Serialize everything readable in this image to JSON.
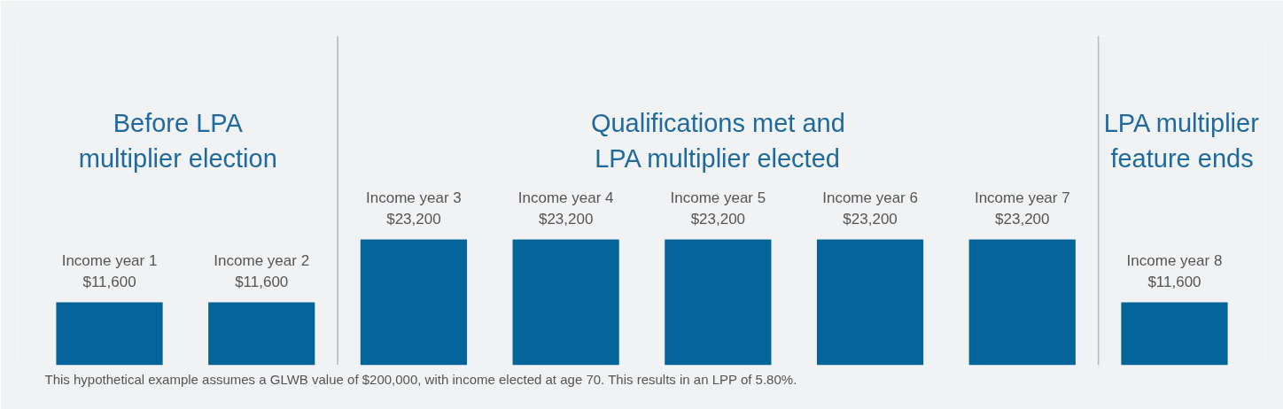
{
  "chart_data": {
    "type": "bar",
    "categories": [
      "Income year 1",
      "Income year 2",
      "Income year 3",
      "Income year 4",
      "Income year 5",
      "Income year 6",
      "Income year 7",
      "Income year 8"
    ],
    "series": [
      {
        "color": "#03649a",
        "values": [
          11600,
          11600,
          23200,
          23200,
          23200,
          23200,
          23200,
          11600
        ],
        "value_labels": [
          "$11,600",
          "$11,600",
          "$23,200",
          "$23,200",
          "$23,200",
          "$23,200",
          "$23,200",
          "$11,600"
        ]
      }
    ],
    "annotations": [
      "Before LPA\nmultiplier election",
      "Qualifications met and\nLPA multiplier elected",
      "LPA multiplier\nfeature ends",
      "This hypothetical example assumes a GLWB value of $200,000, with income elected at age 70. This results in an LPP of 5.80%."
    ],
    "grid": false
  }
}
